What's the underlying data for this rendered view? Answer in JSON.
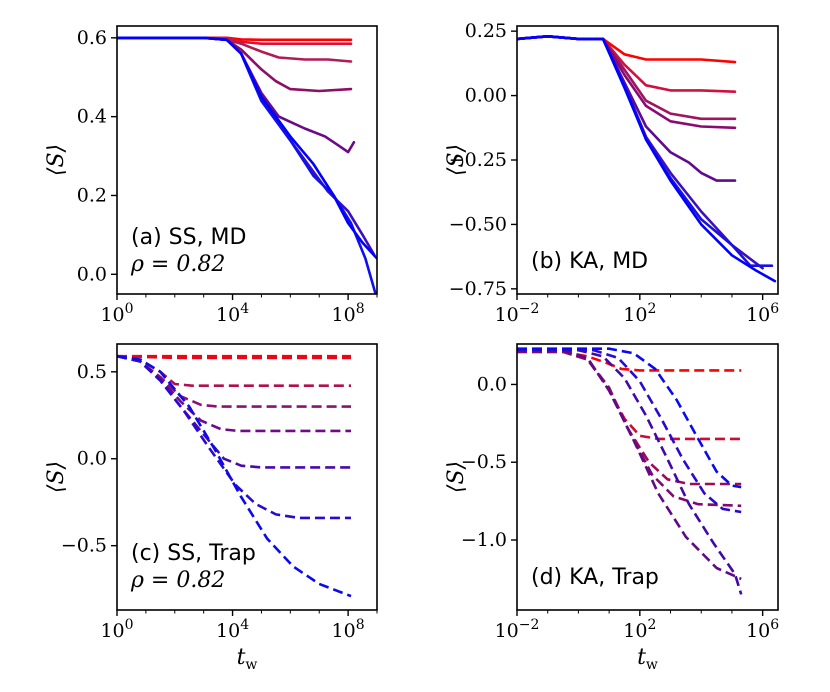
{
  "figure_panels": [
    "(a) SS, MD",
    "(b) KA, MD",
    "(c) SS, Trap",
    "(d) KA, Trap"
  ],
  "chart_data": [
    {
      "id": "a",
      "type": "line",
      "title": "",
      "annotation": "(a) SS, MD",
      "annotation2": "ρ = 0.82",
      "xlabel": "",
      "ylabel": "⟨S⟩",
      "xscale": "log",
      "xlim": [
        0,
        9.0
      ],
      "ylim": [
        -0.05,
        0.63
      ],
      "xticks": [
        0,
        4,
        8
      ],
      "xtick_labels": [
        "10^0",
        "10^4",
        "10^8"
      ],
      "yticks": [
        0.0,
        0.2,
        0.4,
        0.6
      ],
      "ytick_labels": [
        "0.0",
        "0.2",
        "0.4",
        "0.6"
      ],
      "line_style": "solid",
      "series": [
        {
          "name": "s1",
          "color": "#ff0000",
          "x": [
            0,
            1,
            2,
            3,
            3.8,
            4.3,
            5,
            6,
            7,
            8.1
          ],
          "y": [
            0.6,
            0.6,
            0.6,
            0.6,
            0.6,
            0.596,
            0.595,
            0.595,
            0.595,
            0.595
          ]
        },
        {
          "name": "s2",
          "color": "#e00f33",
          "x": [
            0,
            1,
            2,
            3,
            3.8,
            4.3,
            5,
            6,
            7,
            8.1
          ],
          "y": [
            0.6,
            0.6,
            0.6,
            0.6,
            0.6,
            0.59,
            0.585,
            0.585,
            0.585,
            0.585
          ]
        },
        {
          "name": "s3",
          "color": "#b01c55",
          "x": [
            0,
            1,
            2,
            3,
            3.8,
            4.3,
            5,
            5.6,
            6.5,
            7.3,
            8.1
          ],
          "y": [
            0.6,
            0.6,
            0.6,
            0.6,
            0.595,
            0.585,
            0.565,
            0.55,
            0.545,
            0.545,
            0.54
          ]
        },
        {
          "name": "s4",
          "color": "#8e0d66",
          "x": [
            0,
            1,
            2,
            3,
            3.8,
            4.3,
            5,
            5.5,
            6.0,
            7,
            8.1
          ],
          "y": [
            0.6,
            0.6,
            0.6,
            0.6,
            0.595,
            0.57,
            0.52,
            0.49,
            0.47,
            0.465,
            0.47
          ]
        },
        {
          "name": "s5",
          "color": "#6a0a88",
          "x": [
            0,
            1,
            2,
            3,
            3.8,
            4.3,
            5,
            5.6,
            6.5,
            7.2,
            7.6,
            8.0,
            8.2
          ],
          "y": [
            0.6,
            0.6,
            0.6,
            0.6,
            0.595,
            0.56,
            0.46,
            0.4,
            0.37,
            0.35,
            0.33,
            0.31,
            0.335
          ]
        },
        {
          "name": "s6",
          "color": "#3a0fc0",
          "x": [
            0,
            1,
            2,
            3,
            3.8,
            4.3,
            5,
            6,
            6.7,
            7.3,
            8.0,
            8.5,
            8.9
          ],
          "y": [
            0.6,
            0.6,
            0.6,
            0.6,
            0.595,
            0.56,
            0.44,
            0.34,
            0.27,
            0.21,
            0.16,
            0.1,
            0.05
          ]
        },
        {
          "name": "s7",
          "color": "#1010ee",
          "x": [
            0,
            1,
            2,
            3,
            3.8,
            4.3,
            5,
            6,
            6.8,
            7.5,
            8.1,
            8.6,
            8.95
          ],
          "y": [
            0.6,
            0.6,
            0.6,
            0.6,
            0.595,
            0.56,
            0.44,
            0.34,
            0.25,
            0.2,
            0.13,
            0.04,
            -0.05
          ]
        },
        {
          "name": "s8",
          "color": "#0000ff",
          "x": [
            0,
            1,
            2,
            3,
            3.8,
            4.3,
            5,
            6,
            6.8,
            7.5,
            8.0,
            8.5,
            9.0
          ],
          "y": [
            0.6,
            0.6,
            0.6,
            0.6,
            0.595,
            0.56,
            0.45,
            0.35,
            0.28,
            0.2,
            0.13,
            0.08,
            0.04
          ]
        }
      ]
    },
    {
      "id": "b",
      "type": "line",
      "title": "",
      "annotation": "(b) KA, MD",
      "annotation2": "",
      "xlabel": "",
      "ylabel": "⟨S⟩",
      "xscale": "log",
      "xlim": [
        -2,
        6.5
      ],
      "ylim": [
        -0.77,
        0.27
      ],
      "xticks": [
        -2,
        2,
        6
      ],
      "xtick_labels": [
        "10^-2",
        "10^2",
        "10^6"
      ],
      "yticks": [
        -0.75,
        -0.5,
        -0.25,
        0.0,
        0.25
      ],
      "ytick_labels": [
        "−0.75",
        "−0.50",
        "−0.25",
        "0.00",
        "0.25"
      ],
      "line_style": "solid",
      "series": [
        {
          "name": "s1",
          "color": "#ff0000",
          "x": [
            -2,
            -1,
            0,
            0.8,
            1.5,
            2.2,
            3,
            4,
            5.1
          ],
          "y": [
            0.22,
            0.23,
            0.22,
            0.22,
            0.16,
            0.14,
            0.14,
            0.14,
            0.13
          ]
        },
        {
          "name": "s2",
          "color": "#d01040",
          "x": [
            -2,
            -1,
            0,
            0.8,
            1.5,
            2.2,
            3,
            4,
            5.1
          ],
          "y": [
            0.22,
            0.23,
            0.22,
            0.22,
            0.12,
            0.04,
            0.02,
            0.02,
            0.015
          ]
        },
        {
          "name": "s3",
          "color": "#a01560",
          "x": [
            -2,
            -1,
            0,
            0.8,
            1.5,
            2.2,
            3,
            4,
            5.1
          ],
          "y": [
            0.22,
            0.23,
            0.22,
            0.22,
            0.1,
            -0.02,
            -0.07,
            -0.09,
            -0.09
          ]
        },
        {
          "name": "s4",
          "color": "#8a0a72",
          "x": [
            -2,
            -1,
            0,
            0.8,
            1.5,
            2.2,
            3,
            4,
            5.1
          ],
          "y": [
            0.22,
            0.23,
            0.22,
            0.22,
            0.08,
            -0.04,
            -0.1,
            -0.12,
            -0.125
          ]
        },
        {
          "name": "s5",
          "color": "#600a90",
          "x": [
            -2,
            -1,
            0,
            0.8,
            1.5,
            2.2,
            3,
            3.6,
            4,
            4.5,
            5.1
          ],
          "y": [
            0.22,
            0.23,
            0.22,
            0.22,
            0.05,
            -0.12,
            -0.22,
            -0.26,
            -0.3,
            -0.33,
            -0.33
          ]
        },
        {
          "name": "s6",
          "color": "#3a10c0",
          "x": [
            -2,
            -1,
            0,
            0.8,
            1.5,
            2.2,
            3,
            4,
            5,
            6.0
          ],
          "y": [
            0.22,
            0.23,
            0.22,
            0.22,
            0.04,
            -0.16,
            -0.3,
            -0.45,
            -0.58,
            -0.67
          ]
        },
        {
          "name": "s7",
          "color": "#1a10e0",
          "x": [
            -2,
            -1,
            0,
            0.8,
            1.5,
            2.2,
            3,
            4,
            5,
            5.6,
            6.3
          ],
          "y": [
            0.22,
            0.23,
            0.22,
            0.22,
            0.04,
            -0.17,
            -0.32,
            -0.48,
            -0.58,
            -0.66,
            -0.66
          ]
        },
        {
          "name": "s8",
          "color": "#0000ff",
          "x": [
            -2,
            -1,
            0,
            0.8,
            1.5,
            2.2,
            3,
            4,
            5,
            5.8,
            6.4
          ],
          "y": [
            0.22,
            0.23,
            0.22,
            0.22,
            0.03,
            -0.17,
            -0.33,
            -0.5,
            -0.62,
            -0.68,
            -0.72
          ]
        }
      ]
    },
    {
      "id": "c",
      "type": "line",
      "title": "",
      "annotation": "(c) SS, Trap",
      "annotation2": "ρ = 0.82",
      "xlabel": "t_w",
      "ylabel": "⟨S⟩",
      "xscale": "log",
      "xlim": [
        0,
        9.0
      ],
      "ylim": [
        -0.87,
        0.66
      ],
      "xticks": [
        0,
        4,
        8
      ],
      "xtick_labels": [
        "10^0",
        "10^4",
        "10^8"
      ],
      "yticks": [
        -0.5,
        0.0,
        0.5
      ],
      "ytick_labels": [
        "−0.5",
        "0.0",
        "0.5"
      ],
      "line_style": "dashed",
      "series": [
        {
          "name": "s1",
          "color": "#ff0000",
          "x": [
            0,
            1,
            2,
            4,
            6,
            8.1
          ],
          "y": [
            0.59,
            0.59,
            0.59,
            0.59,
            0.59,
            0.59
          ]
        },
        {
          "name": "s2",
          "color": "#e00a20",
          "x": [
            0,
            1,
            2,
            4,
            6,
            8.1
          ],
          "y": [
            0.59,
            0.585,
            0.58,
            0.58,
            0.58,
            0.58
          ]
        },
        {
          "name": "s3",
          "color": "#b01050",
          "x": [
            0,
            0.8,
            1.5,
            2.0,
            2.6,
            4,
            6,
            8.1
          ],
          "y": [
            0.59,
            0.57,
            0.5,
            0.43,
            0.42,
            0.42,
            0.42,
            0.42
          ]
        },
        {
          "name": "s4",
          "color": "#901070",
          "x": [
            0,
            0.8,
            1.5,
            2.2,
            2.9,
            3.5,
            6,
            8.1
          ],
          "y": [
            0.59,
            0.56,
            0.47,
            0.36,
            0.31,
            0.3,
            0.3,
            0.3
          ]
        },
        {
          "name": "s5",
          "color": "#700a88",
          "x": [
            0,
            0.8,
            1.5,
            2.2,
            2.9,
            3.6,
            4.2,
            6,
            8.1
          ],
          "y": [
            0.59,
            0.56,
            0.46,
            0.33,
            0.22,
            0.17,
            0.16,
            0.16,
            0.16
          ]
        },
        {
          "name": "s6",
          "color": "#4a0aa8",
          "x": [
            0,
            0.8,
            1.5,
            2.2,
            3.0,
            3.7,
            4.3,
            5.0,
            6,
            8.1
          ],
          "y": [
            0.59,
            0.56,
            0.45,
            0.3,
            0.14,
            0.0,
            -0.04,
            -0.05,
            -0.05,
            -0.05
          ]
        },
        {
          "name": "s7",
          "color": "#2a0ad0",
          "x": [
            0,
            0.8,
            1.5,
            2.3,
            3.2,
            4.1,
            4.8,
            5.5,
            6.3,
            8.1
          ],
          "y": [
            0.59,
            0.56,
            0.45,
            0.28,
            0.06,
            -0.15,
            -0.26,
            -0.32,
            -0.34,
            -0.34
          ]
        },
        {
          "name": "s8",
          "color": "#0a0aee",
          "x": [
            0,
            0.8,
            1.5,
            2.5,
            3.4,
            4.3,
            5.2,
            6.1,
            7.0,
            8.1
          ],
          "y": [
            0.59,
            0.57,
            0.5,
            0.3,
            0.05,
            -0.22,
            -0.46,
            -0.62,
            -0.72,
            -0.79
          ]
        }
      ]
    },
    {
      "id": "d",
      "type": "line",
      "title": "",
      "annotation": "(d) KA, Trap",
      "annotation2": "",
      "xlabel": "t_w",
      "ylabel": "⟨S⟩",
      "xscale": "log",
      "xlim": [
        -2,
        6.5
      ],
      "ylim": [
        -1.45,
        0.26
      ],
      "xticks": [
        -2,
        2,
        6
      ],
      "xtick_labels": [
        "10^-2",
        "10^2",
        "10^6"
      ],
      "yticks": [
        -1.0,
        -0.5,
        0.0
      ],
      "ytick_labels": [
        "−1.0",
        "−0.5",
        "0.0"
      ],
      "line_style": "dashed",
      "series": [
        {
          "name": "s1",
          "color": "#ff0000",
          "x": [
            -2,
            -0.5,
            0.3,
            0.9,
            1.4,
            2.0,
            3,
            4,
            5.3
          ],
          "y": [
            0.21,
            0.21,
            0.18,
            0.14,
            0.1,
            0.09,
            0.09,
            0.09,
            0.09
          ]
        },
        {
          "name": "s2",
          "color": "#d00a30",
          "x": [
            -2,
            -0.5,
            0.3,
            0.9,
            1.5,
            2.0,
            2.6,
            3.2,
            5.3
          ],
          "y": [
            0.21,
            0.21,
            0.16,
            0.0,
            -0.22,
            -0.33,
            -0.35,
            -0.35,
            -0.35
          ]
        },
        {
          "name": "s3",
          "color": "#a00a55",
          "x": [
            -2,
            -0.5,
            0.3,
            1.0,
            1.6,
            2.3,
            2.9,
            3.6,
            5.3
          ],
          "y": [
            0.21,
            0.21,
            0.16,
            -0.02,
            -0.28,
            -0.5,
            -0.61,
            -0.64,
            -0.64
          ]
        },
        {
          "name": "s4",
          "color": "#800a70",
          "x": [
            -2,
            -0.5,
            0.3,
            1.0,
            1.7,
            2.4,
            3.1,
            3.9,
            5.3
          ],
          "y": [
            0.21,
            0.21,
            0.16,
            -0.03,
            -0.32,
            -0.58,
            -0.72,
            -0.77,
            -0.78
          ]
        },
        {
          "name": "s5",
          "color": "#600a88",
          "x": [
            -2,
            -0.5,
            0.3,
            1.0,
            1.8,
            2.6,
            3.5,
            4.5,
            5.3
          ],
          "y": [
            0.22,
            0.22,
            0.17,
            -0.04,
            -0.36,
            -0.7,
            -0.98,
            -1.18,
            -1.25
          ]
        },
        {
          "name": "s6",
          "color": "#400aa8",
          "x": [
            -2,
            0,
            0.8,
            1.5,
            2.2,
            2.9,
            3.6,
            4.4,
            5.1,
            5.3
          ],
          "y": [
            0.22,
            0.22,
            0.18,
            0.04,
            -0.2,
            -0.48,
            -0.77,
            -1.02,
            -1.22,
            -1.35
          ]
        },
        {
          "name": "s7",
          "color": "#2a0ad0",
          "x": [
            -2,
            0.5,
            1.3,
            2.0,
            2.7,
            3.4,
            4.1,
            4.7,
            5.3
          ],
          "y": [
            0.22,
            0.22,
            0.17,
            0.02,
            -0.22,
            -0.48,
            -0.7,
            -0.8,
            -0.82
          ]
        },
        {
          "name": "s8",
          "color": "#0a0aee",
          "x": [
            -2,
            1.0,
            1.8,
            2.5,
            3.2,
            3.9,
            4.5,
            5.0,
            5.3
          ],
          "y": [
            0.23,
            0.23,
            0.2,
            0.1,
            -0.1,
            -0.35,
            -0.56,
            -0.65,
            -0.66
          ]
        }
      ]
    }
  ]
}
